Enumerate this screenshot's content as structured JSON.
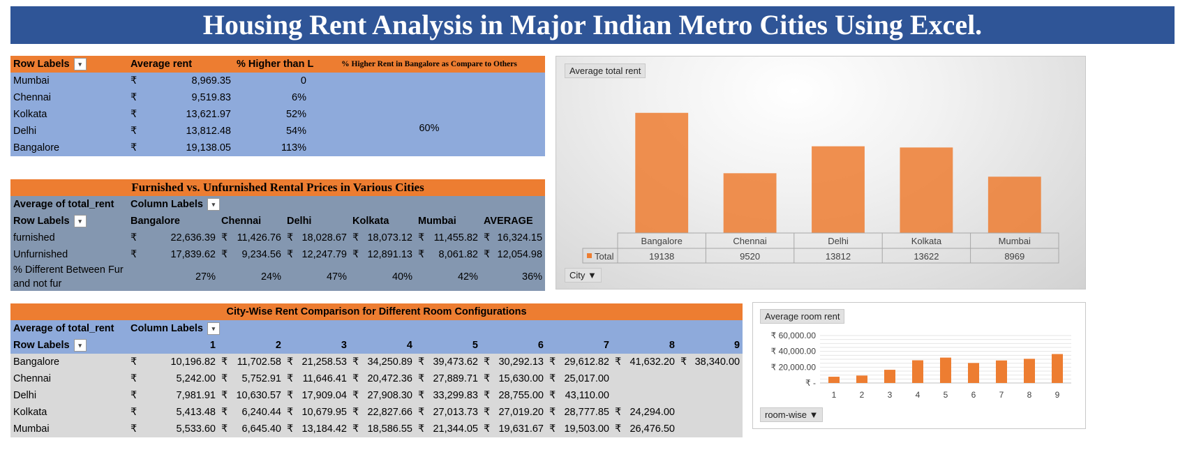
{
  "page_title": "Housing Rent Analysis in Major Indian Metro Cities Using Excel.",
  "currency_symbol": "₹",
  "table1": {
    "headers": [
      "Row Labels",
      "Average rent",
      "% Higher than Lower",
      "% Higher Rent in Bangalore as Compare to Others"
    ],
    "rows": [
      {
        "city": "Mumbai",
        "rent": "8,969.35",
        "pct": "0"
      },
      {
        "city": "Chennai",
        "rent": "9,519.83",
        "pct": "6%"
      },
      {
        "city": "Kolkata",
        "rent": "13,621.97",
        "pct": "52%"
      },
      {
        "city": "Delhi",
        "rent": "13,812.48",
        "pct": "54%"
      },
      {
        "city": "Bangalore",
        "rent": "19,138.05",
        "pct": "113%"
      }
    ],
    "bangalore_higher": "60%"
  },
  "table2": {
    "title": "Furnished vs. Unfurnished Rental Prices in Various Cities",
    "value_label": "Average of total_rent",
    "column_labels": "Column Labels",
    "row_labels": "Row Labels",
    "columns": [
      "Bangalore",
      "Chennai",
      "Delhi",
      "Kolkata",
      "Mumbai",
      "AVERAGE"
    ],
    "rows": [
      {
        "label": "furnished",
        "values": [
          "22,636.39",
          "11,426.76",
          "18,028.67",
          "18,073.12",
          "11,455.82",
          "16,324.15"
        ]
      },
      {
        "label": "Unfurnished",
        "values": [
          "17,839.62",
          "9,234.56",
          "12,247.79",
          "12,891.13",
          "8,061.82",
          "12,054.98"
        ]
      }
    ],
    "diff_label_line1": "% Different Between  Fur",
    "diff_label_line2": "and not fur",
    "diff_values": [
      "27%",
      "24%",
      "47%",
      "40%",
      "42%",
      "36%"
    ]
  },
  "table3": {
    "title": "City-Wise Rent Comparison for Different Room Configurations",
    "value_label": "Average of total_rent",
    "column_labels": "Column Labels",
    "row_labels": "Row Labels",
    "columns": [
      "1",
      "2",
      "3",
      "4",
      "5",
      "6",
      "7",
      "8",
      "9"
    ],
    "rows": [
      {
        "city": "Bangalore",
        "values": [
          "10,196.82",
          "11,702.58",
          "21,258.53",
          "34,250.89",
          "39,473.62",
          "30,292.13",
          "29,612.82",
          "41,632.20",
          "38,340.00"
        ]
      },
      {
        "city": "Chennai",
        "values": [
          "5,242.00",
          "5,752.91",
          "11,646.41",
          "20,472.36",
          "27,889.71",
          "15,630.00",
          "25,017.00",
          "",
          ""
        ]
      },
      {
        "city": "Delhi",
        "values": [
          "7,981.91",
          "10,630.57",
          "17,909.04",
          "27,908.30",
          "33,299.83",
          "28,755.00",
          "43,110.00",
          "",
          ""
        ]
      },
      {
        "city": "Kolkata",
        "values": [
          "5,413.48",
          "6,240.44",
          "10,679.95",
          "22,827.66",
          "27,013.73",
          "27,019.20",
          "28,777.85",
          "24,294.00",
          ""
        ]
      },
      {
        "city": "Mumbai",
        "values": [
          "5,533.60",
          "6,645.40",
          "13,184.42",
          "18,586.55",
          "21,344.05",
          "19,631.67",
          "19,503.00",
          "26,476.50",
          ""
        ]
      }
    ]
  },
  "chart_data": [
    {
      "type": "bar",
      "field_button": "Average  total  rent",
      "axis_field_button": "City",
      "categories": [
        "Bangalore",
        "Chennai",
        "Delhi",
        "Kolkata",
        "Mumbai"
      ],
      "series": [
        {
          "name": "Total",
          "values": [
            19138,
            9520,
            13812,
            13622,
            8969
          ]
        }
      ],
      "ylim": [
        0,
        22000
      ],
      "data_table": true,
      "bar_color": "#ed7d31"
    },
    {
      "type": "bar",
      "field_button": "Average  room  rent",
      "axis_field_button": "room-wise",
      "categories": [
        "1",
        "2",
        "3",
        "4",
        "5",
        "6",
        "7",
        "8",
        "9"
      ],
      "values": [
        7900,
        9400,
        16700,
        28700,
        32100,
        25300,
        28500,
        30600,
        36600
      ],
      "ytick_labels": [
        "₹ -",
        "₹ 20,000.00",
        "₹ 40,000.00",
        "₹ 60,000.00"
      ],
      "ylim": [
        0,
        60000
      ],
      "grid": true,
      "bar_color": "#ed7d31"
    }
  ]
}
